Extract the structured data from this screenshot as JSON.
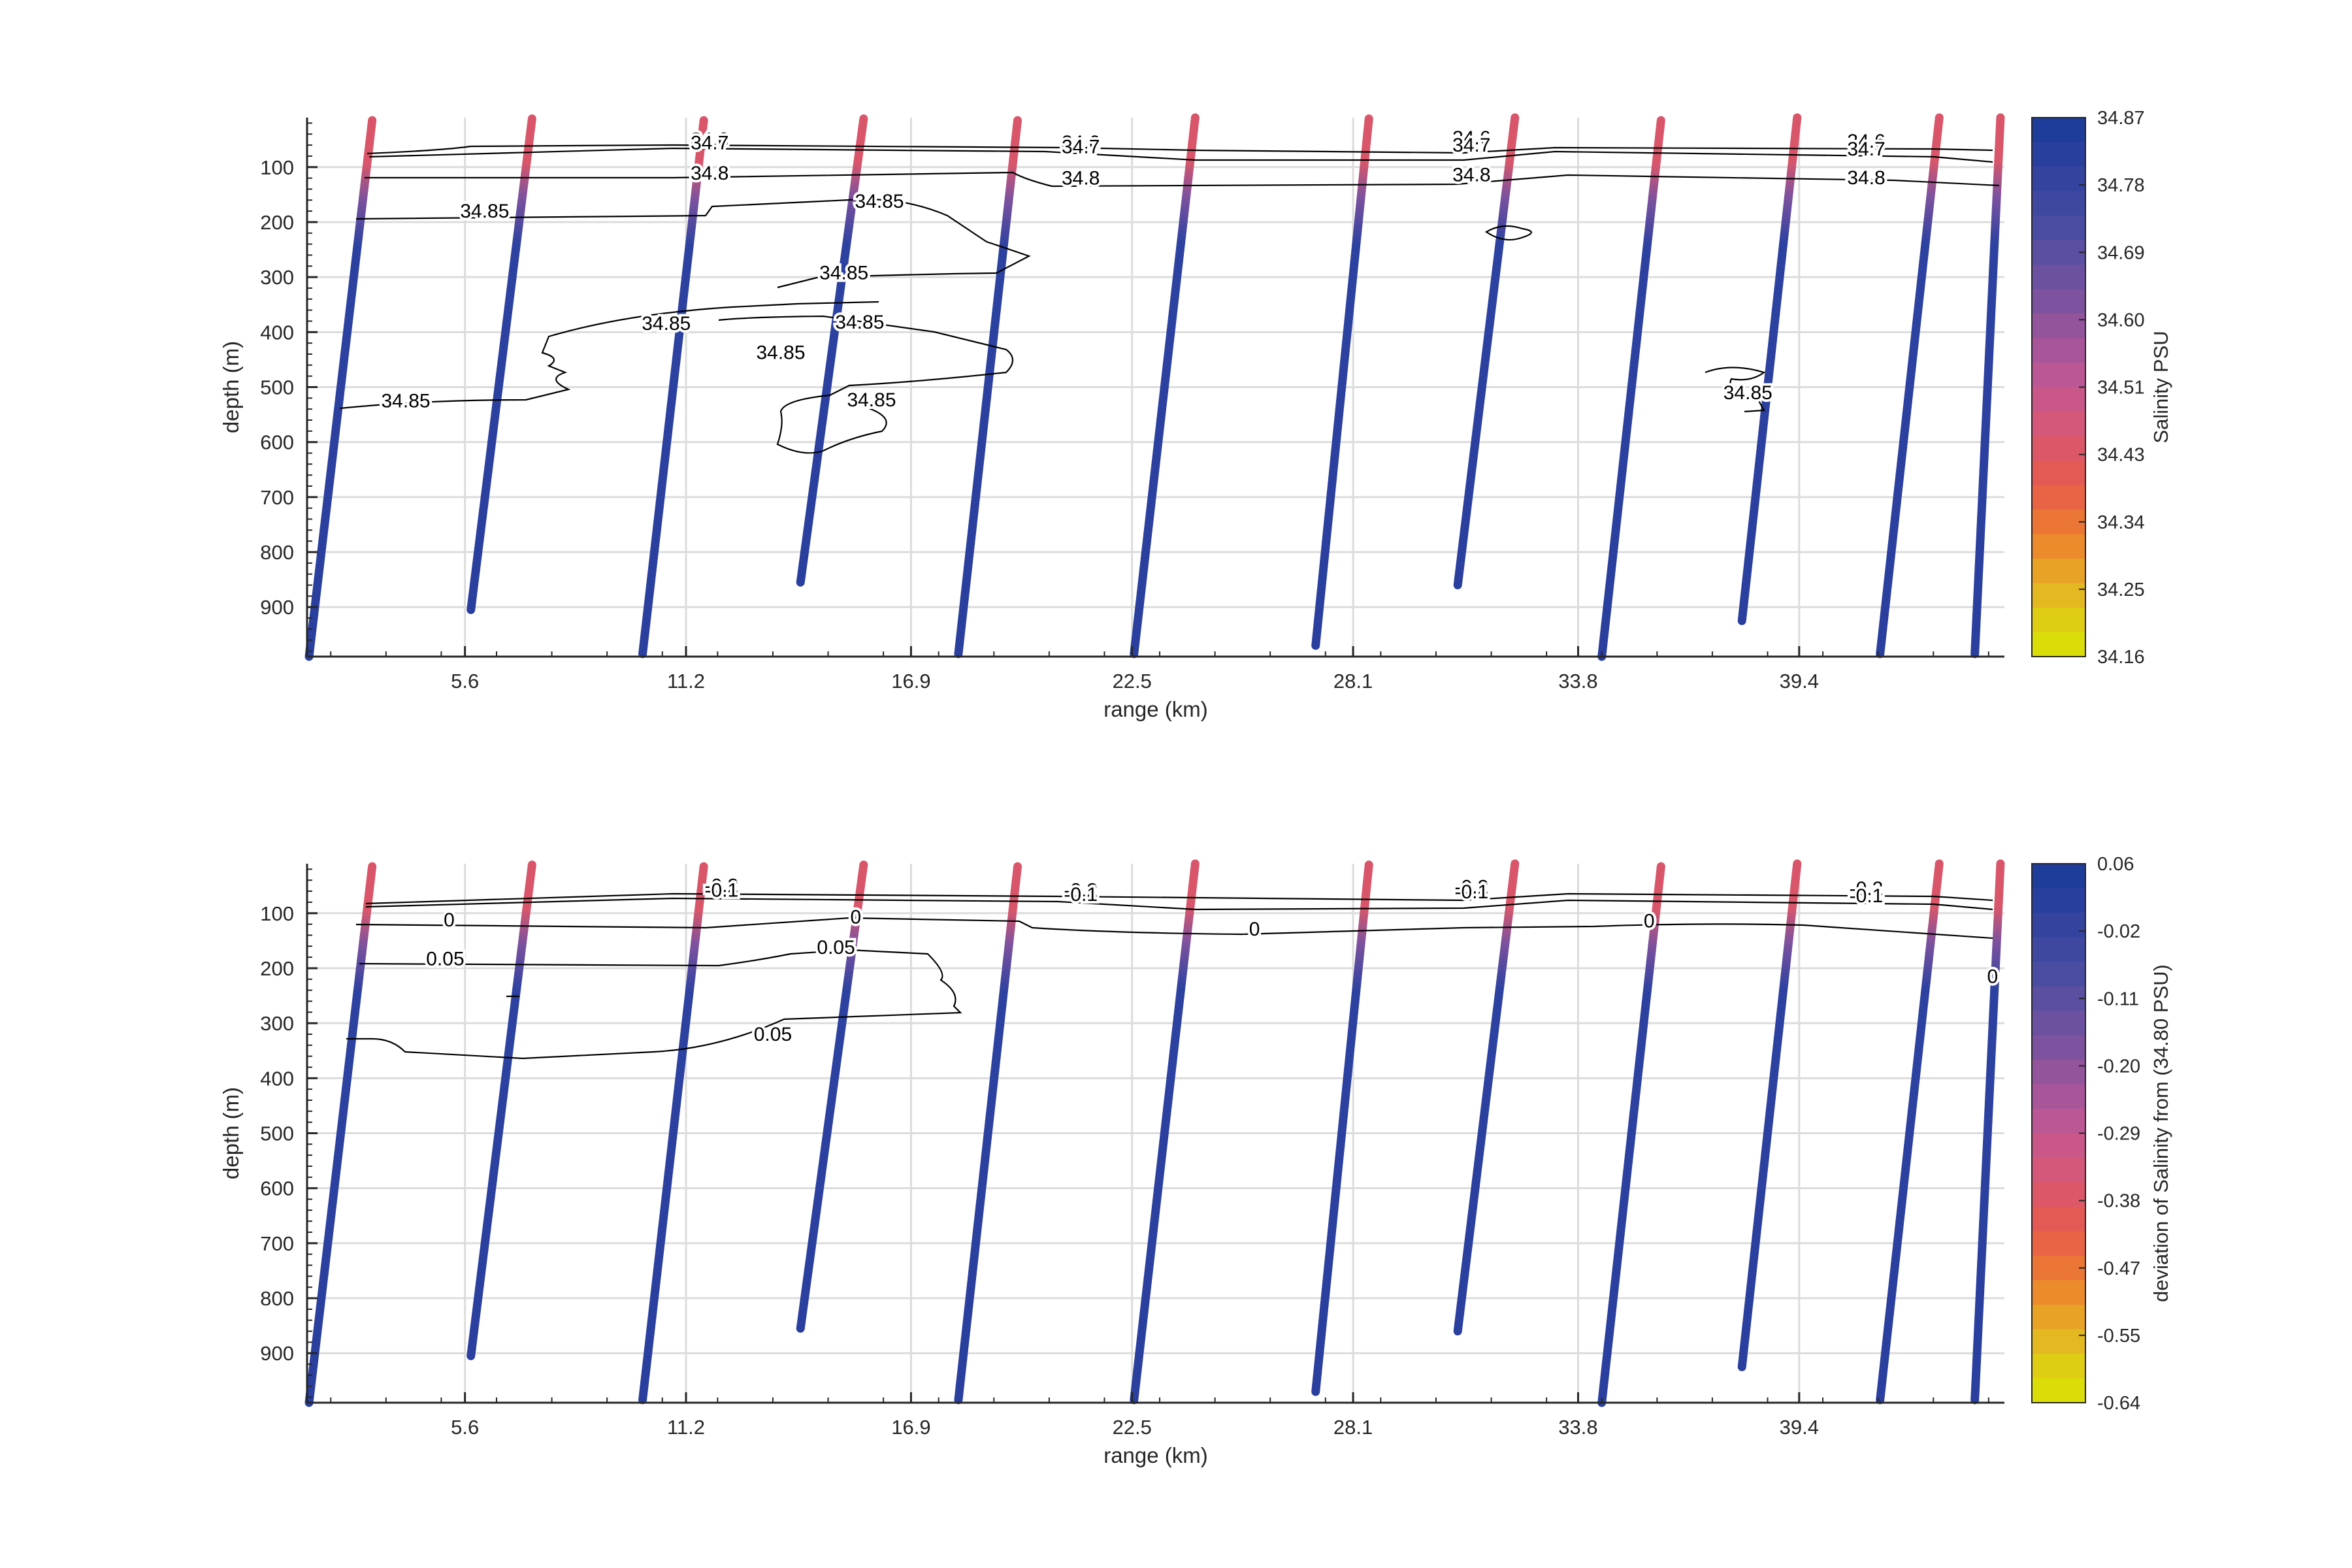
{
  "chart_data": [
    {
      "type": "scatter",
      "subtype": "glider-section-with-contours",
      "xlabel": "range (km)",
      "ylabel": "depth (m)",
      "xticks": [
        "5.6",
        "11.2",
        "16.9",
        "22.5",
        "28.1",
        "33.8",
        "39.4"
      ],
      "xtick_values": [
        5.6,
        11.2,
        16.9,
        22.5,
        28.1,
        33.8,
        39.4
      ],
      "yticks": [
        "100",
        "200",
        "300",
        "400",
        "500",
        "600",
        "700",
        "800",
        "900"
      ],
      "ytick_values": [
        100,
        200,
        300,
        400,
        500,
        600,
        700,
        800,
        900
      ],
      "xlim": [
        1.6,
        44.6
      ],
      "ylim": [
        990,
        10
      ],
      "grid": true,
      "colorbar": {
        "label": "Salinity PSU",
        "ticks": [
          "34.87",
          "34.78",
          "34.69",
          "34.60",
          "34.51",
          "34.43",
          "34.34",
          "34.25",
          "34.16"
        ],
        "colors": [
          "#1e3c9a",
          "#283f9d",
          "#34449e",
          "#3e48a0",
          "#4a4ca1",
          "#5a4fa0",
          "#6b51a0",
          "#7d529e",
          "#93549c",
          "#a8559a",
          "#bb5795",
          "#c95888",
          "#d4587a",
          "#dc5868",
          "#e35a55",
          "#e86444",
          "#eb7535",
          "#eb8b2c",
          "#e8a226",
          "#e4b820",
          "#dfcd14",
          "#dbdd08"
        ]
      },
      "contour_labels": [
        {
          "text": "34.6",
          "x": 11.8,
          "y": 50
        },
        {
          "text": "34.7",
          "x": 11.8,
          "y": 56
        },
        {
          "text": "34.6",
          "x": 21.2,
          "y": 55
        },
        {
          "text": "34.7",
          "x": 21.2,
          "y": 63
        },
        {
          "text": "34.8",
          "x": 11.8,
          "y": 111
        },
        {
          "text": "34.8",
          "x": 21.2,
          "y": 120
        },
        {
          "text": "34.6",
          "x": 31.1,
          "y": 47
        },
        {
          "text": "34.7",
          "x": 31.1,
          "y": 60
        },
        {
          "text": "34.8",
          "x": 31.1,
          "y": 114
        },
        {
          "text": "34.6",
          "x": 41.1,
          "y": 53
        },
        {
          "text": "34.7",
          "x": 41.1,
          "y": 67
        },
        {
          "text": "34.8",
          "x": 41.1,
          "y": 119
        },
        {
          "text": "34.85",
          "x": 6.1,
          "y": 180
        },
        {
          "text": "34.85",
          "x": 16.1,
          "y": 162
        },
        {
          "text": "34.85",
          "x": 15.2,
          "y": 292
        },
        {
          "text": "34.85",
          "x": 10.7,
          "y": 384
        },
        {
          "text": "34.85",
          "x": 15.6,
          "y": 382
        },
        {
          "text": "34.85",
          "x": 13.6,
          "y": 437
        },
        {
          "text": "34.85",
          "x": 15.9,
          "y": 523
        },
        {
          "text": "34.85",
          "x": 4.1,
          "y": 525
        },
        {
          "text": "34.85",
          "x": 38.1,
          "y": 510
        }
      ]
    },
    {
      "type": "scatter",
      "subtype": "glider-section-with-contours",
      "xlabel": "range (km)",
      "ylabel": "depth (m)",
      "xticks": [
        "5.6",
        "11.2",
        "16.9",
        "22.5",
        "28.1",
        "33.8",
        "39.4"
      ],
      "xtick_values": [
        5.6,
        11.2,
        16.9,
        22.5,
        28.1,
        33.8,
        39.4
      ],
      "yticks": [
        "100",
        "200",
        "300",
        "400",
        "500",
        "600",
        "700",
        "800",
        "900"
      ],
      "ytick_values": [
        100,
        200,
        300,
        400,
        500,
        600,
        700,
        800,
        900
      ],
      "xlim": [
        1.6,
        44.6
      ],
      "ylim": [
        990,
        10
      ],
      "grid": true,
      "colorbar": {
        "label": "deviation of Salinity from (34.80 PSU)",
        "ticks": [
          "0.06",
          "-0.02",
          "-0.11",
          "-0.20",
          "-0.29",
          "-0.38",
          "-0.47",
          "-0.55",
          "-0.64"
        ],
        "colors": [
          "#1e3c9a",
          "#283f9d",
          "#34449e",
          "#3e48a0",
          "#4a4ca1",
          "#5a4fa0",
          "#6b51a0",
          "#7d529e",
          "#93549c",
          "#a8559a",
          "#bb5795",
          "#c95888",
          "#d4587a",
          "#dc5868",
          "#e35a55",
          "#e86444",
          "#eb7535",
          "#eb8b2c",
          "#e8a226",
          "#e4b820",
          "#dfcd14",
          "#dbdd08"
        ]
      },
      "contour_labels": [
        {
          "text": "-0.2",
          "x": 12.1,
          "y": 50
        },
        {
          "text": "-0.1",
          "x": 12.1,
          "y": 58
        },
        {
          "text": "-0.2",
          "x": 21.2,
          "y": 58
        },
        {
          "text": "-0.1",
          "x": 21.2,
          "y": 66
        },
        {
          "text": "-0.2",
          "x": 31.1,
          "y": 52
        },
        {
          "text": "-0.1",
          "x": 31.1,
          "y": 61
        },
        {
          "text": "-0.2",
          "x": 41.1,
          "y": 55
        },
        {
          "text": "-0.1",
          "x": 41.1,
          "y": 68
        },
        {
          "text": "0",
          "x": 5.2,
          "y": 112
        },
        {
          "text": "0",
          "x": 15.5,
          "y": 107
        },
        {
          "text": "0",
          "x": 25.6,
          "y": 129
        },
        {
          "text": "0",
          "x": 35.6,
          "y": 114
        },
        {
          "text": "0",
          "x": 44.3,
          "y": 215
        },
        {
          "text": "0.05",
          "x": 5.1,
          "y": 183
        },
        {
          "text": "0.05",
          "x": 15.0,
          "y": 162
        },
        {
          "text": "0.05",
          "x": 13.4,
          "y": 320
        }
      ]
    }
  ]
}
